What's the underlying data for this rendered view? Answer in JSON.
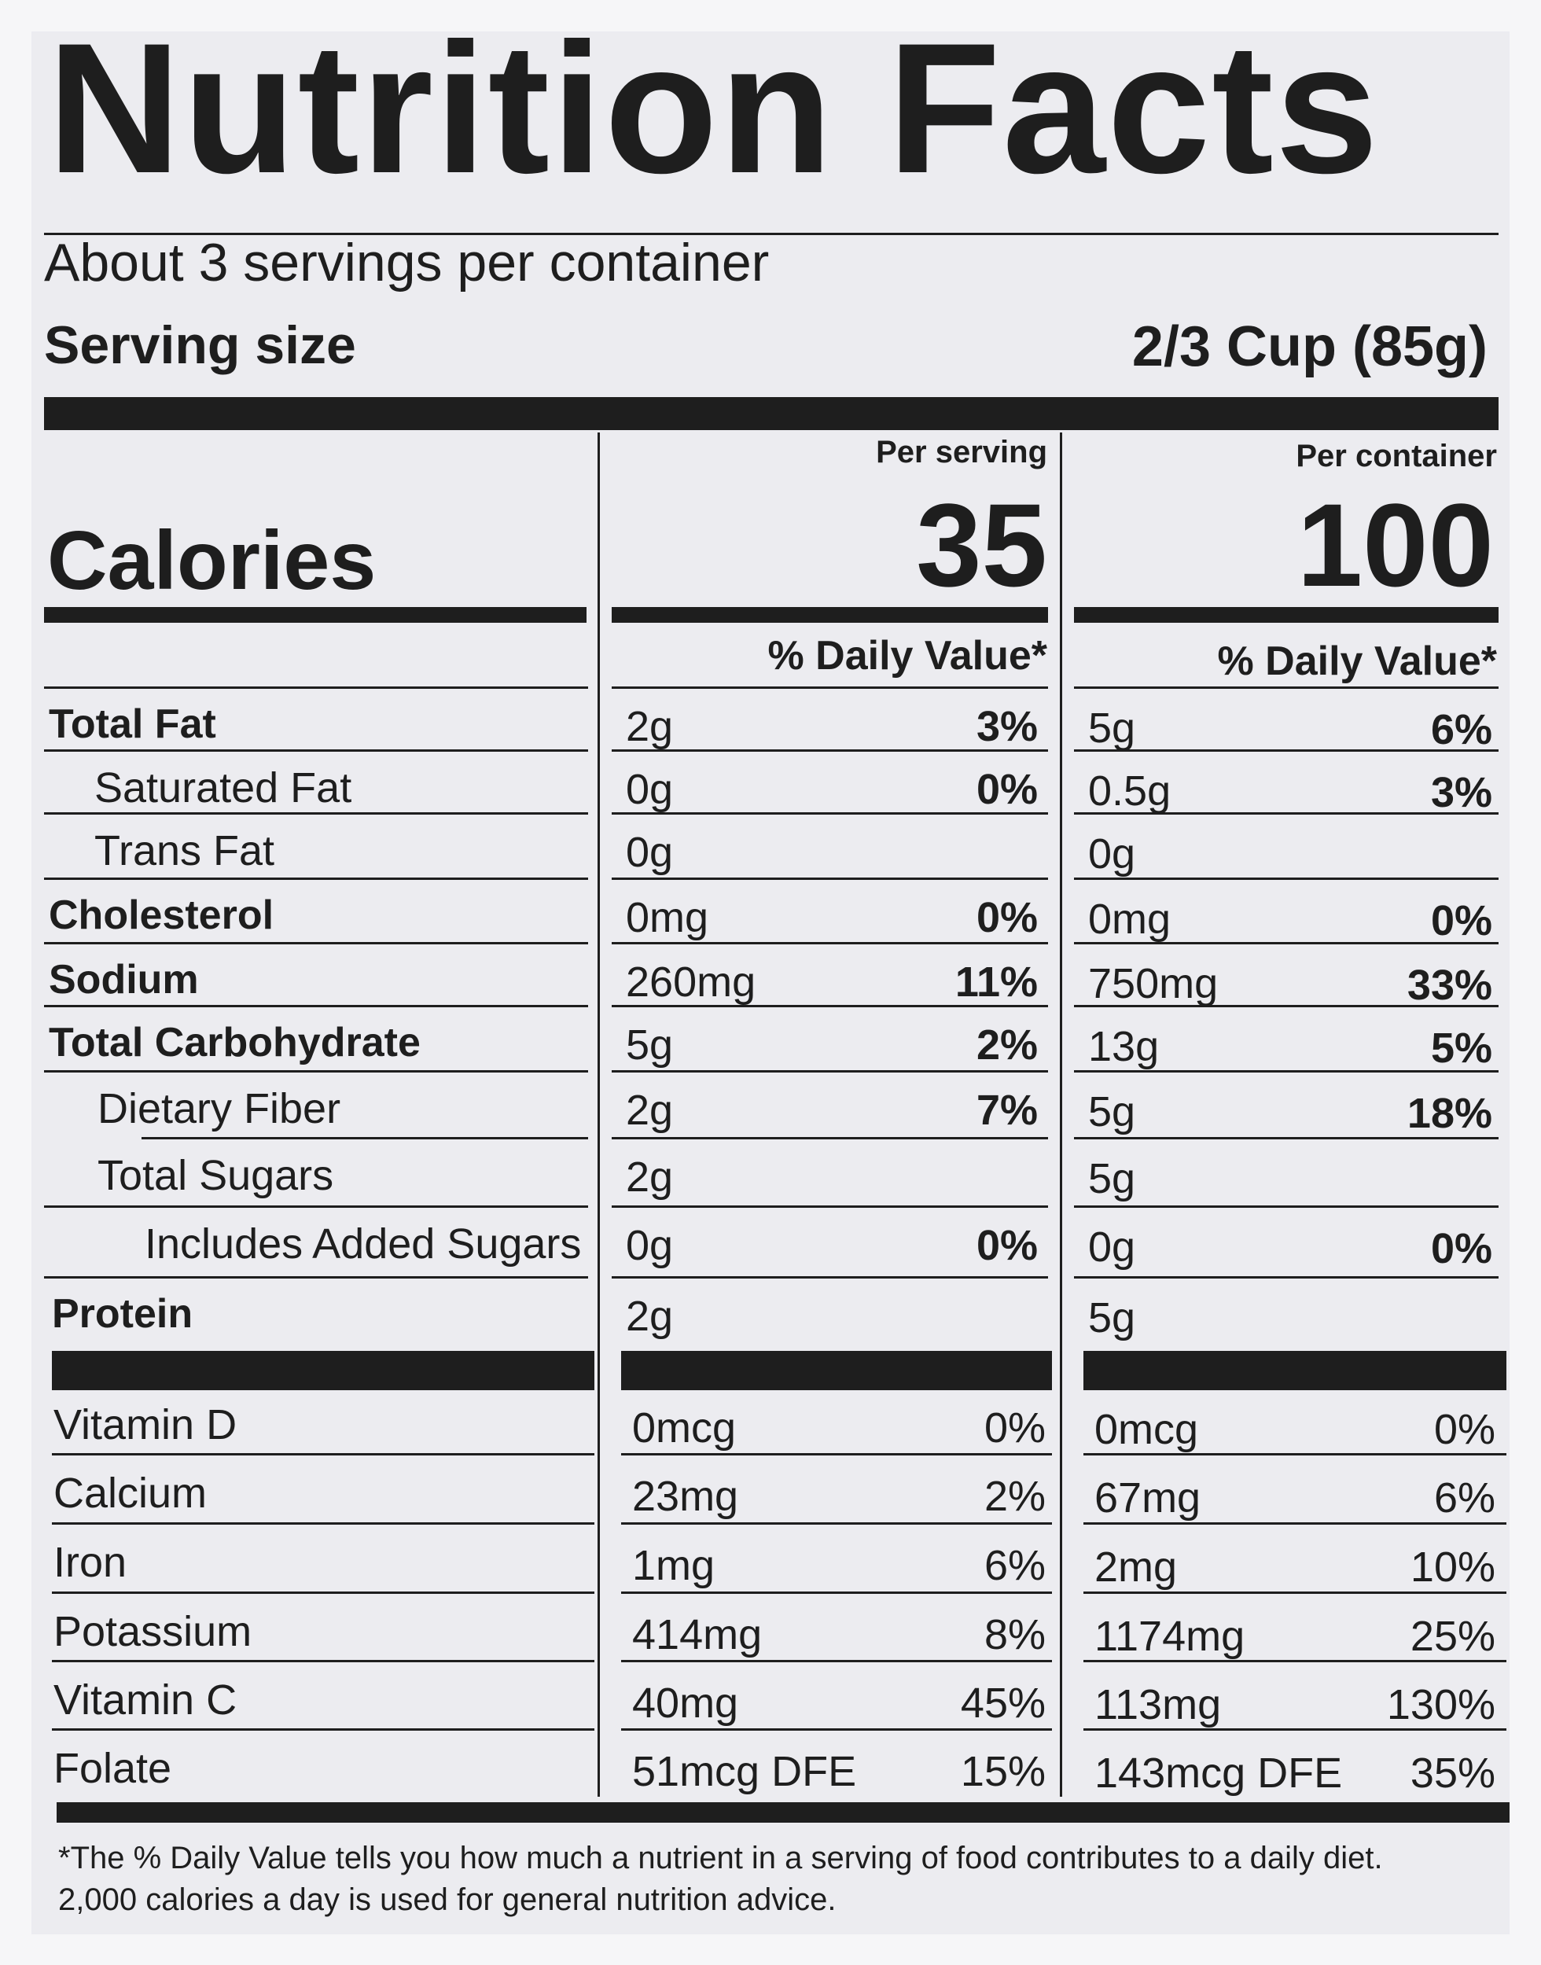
{
  "title": "Nutrition Facts",
  "servings_per_container": "About 3 servings per container",
  "serving_size": {
    "label": "Serving size",
    "value": "2/3 Cup (85g)"
  },
  "columns": {
    "per_serving": {
      "header": "Per serving",
      "calories": "35",
      "dv_header": "% Daily Value*"
    },
    "per_container": {
      "header": "Per container",
      "calories": "100",
      "dv_header": "% Daily Value*"
    }
  },
  "calories_label": "Calories",
  "nutrients": [
    {
      "name": "Total Fat",
      "serving_amount": "2g",
      "serving_dv": "3%",
      "container_amount": "5g",
      "container_dv": "6%"
    },
    {
      "name": "Saturated Fat",
      "serving_amount": "0g",
      "serving_dv": "0%",
      "container_amount": "0.5g",
      "container_dv": "3%"
    },
    {
      "name": "Trans Fat",
      "serving_amount": "0g",
      "serving_dv": "",
      "container_amount": "0g",
      "container_dv": ""
    },
    {
      "name": "Cholesterol",
      "serving_amount": "0mg",
      "serving_dv": "0%",
      "container_amount": "0mg",
      "container_dv": "0%"
    },
    {
      "name": "Sodium",
      "serving_amount": "260mg",
      "serving_dv": "11%",
      "container_amount": "750mg",
      "container_dv": "33%"
    },
    {
      "name": "Total Carbohydrate",
      "serving_amount": "5g",
      "serving_dv": "2%",
      "container_amount": "13g",
      "container_dv": "5%"
    },
    {
      "name": "Dietary Fiber",
      "serving_amount": "2g",
      "serving_dv": "7%",
      "container_amount": "5g",
      "container_dv": "18%"
    },
    {
      "name": "Total Sugars",
      "serving_amount": "2g",
      "serving_dv": "",
      "container_amount": "5g",
      "container_dv": ""
    },
    {
      "name": "Includes Added Sugars",
      "serving_amount": "0g",
      "serving_dv": "0%",
      "container_amount": "0g",
      "container_dv": "0%"
    },
    {
      "name": "Protein",
      "serving_amount": "2g",
      "serving_dv": "",
      "container_amount": "5g",
      "container_dv": ""
    }
  ],
  "vitamins": [
    {
      "name": "Vitamin D",
      "serving_amount": "0mcg",
      "serving_dv": "0%",
      "container_amount": "0mcg",
      "container_dv": "0%"
    },
    {
      "name": "Calcium",
      "serving_amount": "23mg",
      "serving_dv": "2%",
      "container_amount": "67mg",
      "container_dv": "6%"
    },
    {
      "name": "Iron",
      "serving_amount": "1mg",
      "serving_dv": "6%",
      "container_amount": "2mg",
      "container_dv": "10%"
    },
    {
      "name": "Potassium",
      "serving_amount": "414mg",
      "serving_dv": "8%",
      "container_amount": "1174mg",
      "container_dv": "25%"
    },
    {
      "name": "Vitamin C",
      "serving_amount": "40mg",
      "serving_dv": "45%",
      "container_amount": "113mg",
      "container_dv": "130%"
    },
    {
      "name": "Folate",
      "serving_amount": "51mcg DFE",
      "serving_dv": "15%",
      "container_amount": "143mcg DFE",
      "container_dv": "35%"
    }
  ],
  "footnote": [
    "*The % Daily Value tells you how much a nutrient in a serving of food contributes to a daily diet.",
    "2,000 calories a day is used for general nutrition advice."
  ]
}
